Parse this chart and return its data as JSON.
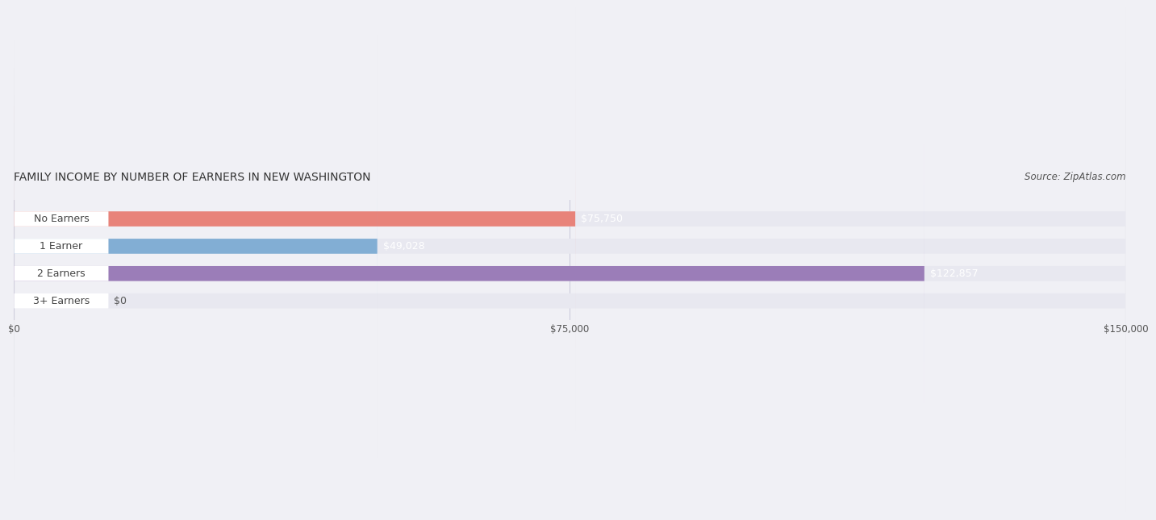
{
  "title": "FAMILY INCOME BY NUMBER OF EARNERS IN NEW WASHINGTON",
  "source": "Source: ZipAtlas.com",
  "categories": [
    "No Earners",
    "1 Earner",
    "2 Earners",
    "3+ Earners"
  ],
  "values": [
    75750,
    49028,
    122857,
    0
  ],
  "bar_colors": [
    "#e8837a",
    "#82aed4",
    "#9b7db8",
    "#6ec4c4"
  ],
  "label_colors": [
    "#e8837a",
    "#82aed4",
    "#9b7db8",
    "#6ec4c4"
  ],
  "value_labels": [
    "$75,750",
    "$49,028",
    "$122,857",
    "$0"
  ],
  "xlim": [
    0,
    150000
  ],
  "xticks": [
    0,
    75000,
    150000
  ],
  "xtick_labels": [
    "$0",
    "$75,000",
    "$150,000"
  ],
  "bar_height": 0.55,
  "background_color": "#f0f0f5",
  "bar_bg_color": "#e8e8f0",
  "title_fontsize": 10,
  "source_fontsize": 8.5,
  "label_fontsize": 9,
  "value_fontsize": 9
}
